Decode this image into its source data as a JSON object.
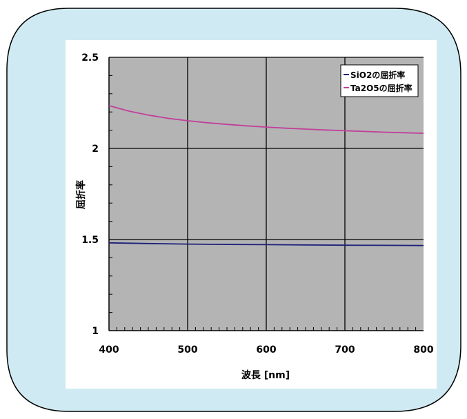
{
  "chart_data": {
    "type": "line",
    "title": "",
    "xlabel": "波長 [nm]",
    "ylabel": "屈折率",
    "xlim": [
      400,
      800
    ],
    "ylim": [
      1,
      2.5
    ],
    "x_ticks": [
      "400",
      "500",
      "600",
      "700",
      "800"
    ],
    "y_ticks": [
      "1",
      "1.5",
      "2",
      "2.5"
    ],
    "grid": true,
    "legend_position": "top-right",
    "series": [
      {
        "name": "SiO2の屈折率",
        "color": "#1c1f7a",
        "x": [
          400,
          450,
          500,
          550,
          600,
          650,
          700,
          750,
          800
        ],
        "y": [
          1.482,
          1.478,
          1.475,
          1.473,
          1.472,
          1.47,
          1.469,
          1.468,
          1.467
        ]
      },
      {
        "name": "Ta2O5の屈折率",
        "color": "#c0409a",
        "x": [
          400,
          425,
          450,
          475,
          500,
          525,
          550,
          575,
          600,
          625,
          650,
          675,
          700,
          725,
          750,
          775,
          800
        ],
        "y": [
          2.235,
          2.205,
          2.183,
          2.165,
          2.152,
          2.141,
          2.132,
          2.124,
          2.117,
          2.111,
          2.106,
          2.101,
          2.097,
          2.093,
          2.089,
          2.086,
          2.083
        ]
      }
    ]
  },
  "style": {
    "frame_fill": "#cfeaf2",
    "frame_stroke": "#000000",
    "panel_fill": "#ffffff",
    "plot_fill": "#b4b4b4",
    "grid_color": "#000000"
  }
}
